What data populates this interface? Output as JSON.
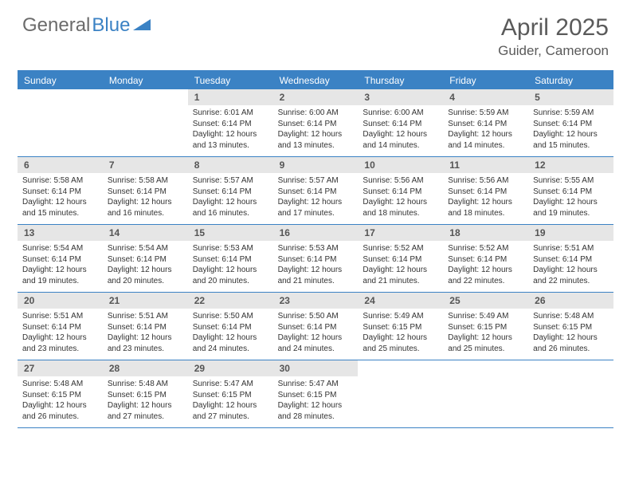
{
  "brand": {
    "part1": "General",
    "part2": "Blue"
  },
  "title": "April 2025",
  "location": "Guider, Cameroon",
  "colors": {
    "accent": "#3b82c4",
    "header_text": "#5a5a5a",
    "logo_gray": "#6b6b6b",
    "daynum_bg": "#e6e6e6",
    "daynum_text": "#555555",
    "body_text": "#333333",
    "background": "#ffffff"
  },
  "weekdays": [
    "Sunday",
    "Monday",
    "Tuesday",
    "Wednesday",
    "Thursday",
    "Friday",
    "Saturday"
  ],
  "calendar": {
    "first_weekday_index": 2,
    "days": [
      {
        "n": 1,
        "sunrise": "6:01 AM",
        "sunset": "6:14 PM",
        "daylight": "12 hours and 13 minutes."
      },
      {
        "n": 2,
        "sunrise": "6:00 AM",
        "sunset": "6:14 PM",
        "daylight": "12 hours and 13 minutes."
      },
      {
        "n": 3,
        "sunrise": "6:00 AM",
        "sunset": "6:14 PM",
        "daylight": "12 hours and 14 minutes."
      },
      {
        "n": 4,
        "sunrise": "5:59 AM",
        "sunset": "6:14 PM",
        "daylight": "12 hours and 14 minutes."
      },
      {
        "n": 5,
        "sunrise": "5:59 AM",
        "sunset": "6:14 PM",
        "daylight": "12 hours and 15 minutes."
      },
      {
        "n": 6,
        "sunrise": "5:58 AM",
        "sunset": "6:14 PM",
        "daylight": "12 hours and 15 minutes."
      },
      {
        "n": 7,
        "sunrise": "5:58 AM",
        "sunset": "6:14 PM",
        "daylight": "12 hours and 16 minutes."
      },
      {
        "n": 8,
        "sunrise": "5:57 AM",
        "sunset": "6:14 PM",
        "daylight": "12 hours and 16 minutes."
      },
      {
        "n": 9,
        "sunrise": "5:57 AM",
        "sunset": "6:14 PM",
        "daylight": "12 hours and 17 minutes."
      },
      {
        "n": 10,
        "sunrise": "5:56 AM",
        "sunset": "6:14 PM",
        "daylight": "12 hours and 18 minutes."
      },
      {
        "n": 11,
        "sunrise": "5:56 AM",
        "sunset": "6:14 PM",
        "daylight": "12 hours and 18 minutes."
      },
      {
        "n": 12,
        "sunrise": "5:55 AM",
        "sunset": "6:14 PM",
        "daylight": "12 hours and 19 minutes."
      },
      {
        "n": 13,
        "sunrise": "5:54 AM",
        "sunset": "6:14 PM",
        "daylight": "12 hours and 19 minutes."
      },
      {
        "n": 14,
        "sunrise": "5:54 AM",
        "sunset": "6:14 PM",
        "daylight": "12 hours and 20 minutes."
      },
      {
        "n": 15,
        "sunrise": "5:53 AM",
        "sunset": "6:14 PM",
        "daylight": "12 hours and 20 minutes."
      },
      {
        "n": 16,
        "sunrise": "5:53 AM",
        "sunset": "6:14 PM",
        "daylight": "12 hours and 21 minutes."
      },
      {
        "n": 17,
        "sunrise": "5:52 AM",
        "sunset": "6:14 PM",
        "daylight": "12 hours and 21 minutes."
      },
      {
        "n": 18,
        "sunrise": "5:52 AM",
        "sunset": "6:14 PM",
        "daylight": "12 hours and 22 minutes."
      },
      {
        "n": 19,
        "sunrise": "5:51 AM",
        "sunset": "6:14 PM",
        "daylight": "12 hours and 22 minutes."
      },
      {
        "n": 20,
        "sunrise": "5:51 AM",
        "sunset": "6:14 PM",
        "daylight": "12 hours and 23 minutes."
      },
      {
        "n": 21,
        "sunrise": "5:51 AM",
        "sunset": "6:14 PM",
        "daylight": "12 hours and 23 minutes."
      },
      {
        "n": 22,
        "sunrise": "5:50 AM",
        "sunset": "6:14 PM",
        "daylight": "12 hours and 24 minutes."
      },
      {
        "n": 23,
        "sunrise": "5:50 AM",
        "sunset": "6:14 PM",
        "daylight": "12 hours and 24 minutes."
      },
      {
        "n": 24,
        "sunrise": "5:49 AM",
        "sunset": "6:15 PM",
        "daylight": "12 hours and 25 minutes."
      },
      {
        "n": 25,
        "sunrise": "5:49 AM",
        "sunset": "6:15 PM",
        "daylight": "12 hours and 25 minutes."
      },
      {
        "n": 26,
        "sunrise": "5:48 AM",
        "sunset": "6:15 PM",
        "daylight": "12 hours and 26 minutes."
      },
      {
        "n": 27,
        "sunrise": "5:48 AM",
        "sunset": "6:15 PM",
        "daylight": "12 hours and 26 minutes."
      },
      {
        "n": 28,
        "sunrise": "5:48 AM",
        "sunset": "6:15 PM",
        "daylight": "12 hours and 27 minutes."
      },
      {
        "n": 29,
        "sunrise": "5:47 AM",
        "sunset": "6:15 PM",
        "daylight": "12 hours and 27 minutes."
      },
      {
        "n": 30,
        "sunrise": "5:47 AM",
        "sunset": "6:15 PM",
        "daylight": "12 hours and 28 minutes."
      }
    ]
  },
  "labels": {
    "sunrise": "Sunrise:",
    "sunset": "Sunset:",
    "daylight": "Daylight:"
  }
}
